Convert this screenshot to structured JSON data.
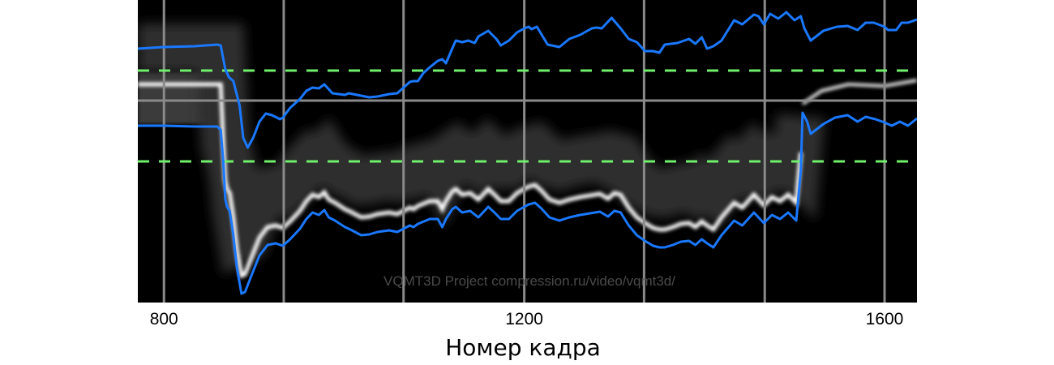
{
  "chart_data": {
    "type": "line",
    "title": "",
    "xlabel": "Номер кадра",
    "ylabel": "",
    "xlim": [
      771,
      1636
    ],
    "ylim": [
      -249,
      124
    ],
    "x_ticks": [
      800,
      1200,
      1600
    ],
    "x_tick_labels": [
      "800",
      "1200",
      "1600"
    ],
    "x_gridlines": [
      800,
      933,
      1066,
      1200,
      1333,
      1467,
      1600
    ],
    "grid": true,
    "background": "grayscale disparity histogram heatmap",
    "watermark": "VQMT3D Project compression.ru/video/vqmt3d/",
    "reference_lines": [
      {
        "y": 0,
        "style": "solid",
        "color": "#8a8a8a"
      },
      {
        "y": 37,
        "style": "dashed",
        "color": "#6ff06a"
      },
      {
        "y": -75,
        "style": "dashed",
        "color": "#6ff06a"
      }
    ],
    "series": [
      {
        "color": "#1a78ff",
        "x": [
          771,
          800,
          834,
          859,
          863,
          868,
          872,
          877,
          884,
          888,
          893,
          899,
          906,
          913,
          920,
          929,
          932,
          940,
          951,
          958,
          965,
          972,
          978,
          983,
          987,
          1001,
          1005,
          1019,
          1028,
          1037,
          1050,
          1059,
          1066,
          1073,
          1077,
          1082,
          1088,
          1095,
          1104,
          1109,
          1113,
          1120,
          1124,
          1131,
          1138,
          1145,
          1149,
          1160,
          1169,
          1174,
          1183,
          1192,
          1200,
          1205,
          1208,
          1214,
          1226,
          1239,
          1250,
          1262,
          1275,
          1280,
          1286,
          1297,
          1307,
          1316,
          1325,
          1334,
          1343,
          1350,
          1356,
          1370,
          1383,
          1390,
          1397,
          1403,
          1410,
          1419,
          1433,
          1442,
          1455,
          1460,
          1466,
          1473,
          1482,
          1491,
          1500,
          1507,
          1511,
          1518,
          1532,
          1547,
          1559,
          1570,
          1579,
          1588,
          1600,
          1604,
          1613,
          1619,
          1626,
          1636
        ],
        "y": [
          64,
          66,
          67,
          69,
          68,
          39,
          29,
          24,
          -6,
          -46,
          -58,
          -46,
          -26,
          -16,
          -18,
          -23,
          -21,
          -9,
          2,
          12,
          16,
          15,
          20,
          14,
          9,
          7,
          9,
          6,
          4,
          5,
          8,
          9,
          16,
          23,
          24,
          24,
          34,
          41,
          49,
          51,
          46,
          64,
          74,
          72,
          74,
          71,
          79,
          86,
          76,
          68,
          74,
          84,
          89,
          91,
          88,
          91,
          69,
          66,
          76,
          81,
          89,
          90,
          89,
          102,
          89,
          76,
          72,
          61,
          61,
          59,
          69,
          71,
          76,
          70,
          78,
          64,
          67,
          74,
          99,
          94,
          106,
          104,
          94,
          107,
          101,
          109,
          99,
          104,
          89,
          74,
          86,
          91,
          92,
          87,
          96,
          96,
          91,
          87,
          87,
          96,
          96,
          100
        ]
      },
      {
        "color": "#1a78ff",
        "x": [
          771,
          800,
          834,
          859,
          863,
          866,
          868,
          870,
          873,
          877,
          881,
          886,
          890,
          897,
          906,
          915,
          924,
          932,
          940,
          951,
          958,
          965,
          972,
          978,
          983,
          990,
          1001,
          1007,
          1019,
          1028,
          1037,
          1050,
          1059,
          1066,
          1073,
          1077,
          1082,
          1095,
          1104,
          1109,
          1113,
          1120,
          1124,
          1131,
          1140,
          1149,
          1160,
          1167,
          1174,
          1183,
          1192,
          1200,
          1205,
          1212,
          1219,
          1228,
          1239,
          1250,
          1262,
          1284,
          1293,
          1300,
          1307,
          1316,
          1325,
          1334,
          1343,
          1350,
          1356,
          1365,
          1374,
          1383,
          1390,
          1397,
          1403,
          1410,
          1419,
          1433,
          1442,
          1455,
          1466,
          1475,
          1484,
          1493,
          1502,
          1507,
          1509,
          1514,
          1518,
          1532,
          1545,
          1559,
          1570,
          1579,
          1590,
          1600,
          1608,
          1617,
          1626,
          1636
        ],
        "y": [
          -31,
          -31,
          -32,
          -32,
          -36,
          -76,
          -121,
          -131,
          -136,
          -166,
          -206,
          -238,
          -236,
          -216,
          -191,
          -178,
          -176,
          -179,
          -171,
          -158,
          -146,
          -138,
          -141,
          -135,
          -144,
          -148,
          -156,
          -159,
          -166,
          -165,
          -162,
          -160,
          -162,
          -158,
          -154,
          -156,
          -152,
          -146,
          -146,
          -156,
          -146,
          -134,
          -131,
          -138,
          -136,
          -144,
          -131,
          -138,
          -146,
          -146,
          -136,
          -131,
          -128,
          -126,
          -133,
          -144,
          -148,
          -144,
          -141,
          -137,
          -143,
          -136,
          -138,
          -154,
          -166,
          -173,
          -179,
          -181,
          -181,
          -178,
          -174,
          -173,
          -178,
          -171,
          -176,
          -181,
          -166,
          -148,
          -154,
          -138,
          -151,
          -141,
          -146,
          -138,
          -148,
          -86,
          -15,
          -26,
          -41,
          -29,
          -21,
          -18,
          -26,
          -20,
          -23,
          -27,
          -31,
          -26,
          -31,
          -22
        ]
      }
    ]
  }
}
